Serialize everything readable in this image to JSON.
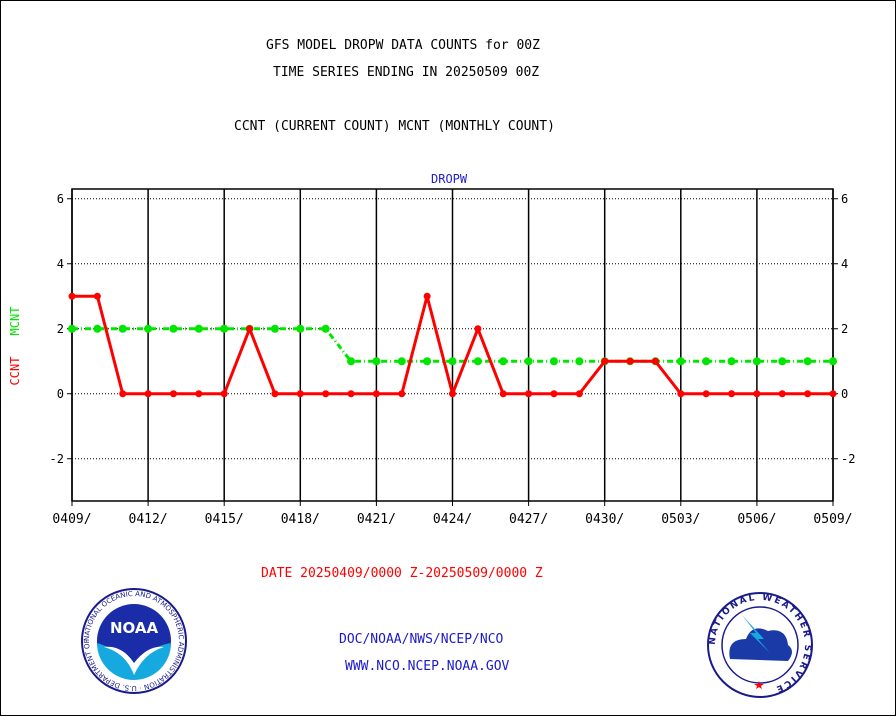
{
  "header": {
    "title_line1": "GFS MODEL DROPW DATA COUNTS for 00Z",
    "title_line2": "TIME SERIES ENDING IN 20250509 00Z",
    "subtitle": "CCNT (CURRENT COUNT) MCNT (MONTHLY COUNT)"
  },
  "footer": {
    "date_range": "DATE 20250409/0000 Z-20250509/0000 Z",
    "org_path": "DOC/NOAA/NWS/NCEP/NCO",
    "website": "WWW.NCO.NCEP.NOAA.GOV"
  },
  "logos": {
    "noaa_text": "NOAA",
    "noaa_ring_text": "NATIONAL OCEANIC AND ATMOSPHERIC ADMINISTRATION · U.S. DEPARTMENT OF COMMERCE",
    "nws_ring_text": "NATIONAL WEATHER SERVICE"
  },
  "colors": {
    "ccnt": "#ff0000",
    "mcnt": "#00e600",
    "panel_title": "#2222cc",
    "footer_link": "#1a1acc",
    "date_text": "#ff0000"
  },
  "chart_data": {
    "type": "line",
    "title": "DROPW",
    "ylabel_ccnt": "CCNT",
    "ylabel_mcnt": "MCNT",
    "xlabel": "DATE 20250409/0000 Z-20250509/0000 Z",
    "x_tick_labels": [
      "0409/",
      "0412/",
      "0415/",
      "0418/",
      "0421/",
      "0424/",
      "0427/",
      "0430/",
      "0503/",
      "0506/",
      "0509/"
    ],
    "y_ticks": [
      -2,
      0,
      2,
      4,
      6
    ],
    "ylim": [
      -3.3,
      6.3
    ],
    "grid": true,
    "x": [
      "0409",
      "0410",
      "0411",
      "0412",
      "0413",
      "0414",
      "0415",
      "0416",
      "0417",
      "0418",
      "0419",
      "0420",
      "0421",
      "0422",
      "0423",
      "0424",
      "0425",
      "0426",
      "0427",
      "0428",
      "0429",
      "0430",
      "0501",
      "0502",
      "0503",
      "0504",
      "0505",
      "0506",
      "0507",
      "0508",
      "0509"
    ],
    "series": [
      {
        "name": "CCNT",
        "values": [
          3,
          3,
          0,
          0,
          0,
          0,
          0,
          2,
          0,
          0,
          0,
          0,
          0,
          0,
          3,
          0,
          2,
          0,
          0,
          0,
          0,
          1,
          1,
          1,
          0,
          0,
          0,
          0,
          0,
          0,
          0
        ]
      },
      {
        "name": "MCNT",
        "values": [
          2,
          2,
          2,
          2,
          2,
          2,
          2,
          2,
          2,
          2,
          2,
          1,
          1,
          1,
          1,
          1,
          1,
          1,
          1,
          1,
          1,
          1,
          1,
          1,
          1,
          1,
          1,
          1,
          1,
          1,
          1
        ]
      }
    ]
  }
}
